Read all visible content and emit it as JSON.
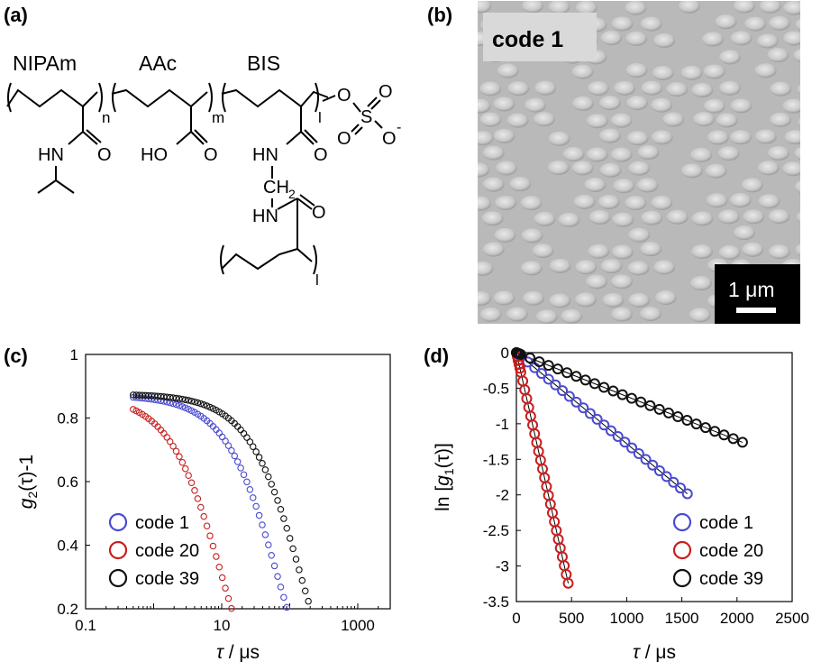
{
  "panels": {
    "a": "(a)",
    "b": "(b)",
    "c": "(c)",
    "d": "(d)"
  },
  "structure": {
    "monomers": [
      "NIPAm",
      "AAc",
      "BIS"
    ],
    "subscripts": [
      "n",
      "m",
      "l",
      "l"
    ],
    "groups": {
      "hn1": "HN",
      "o1": "O",
      "ho": "HO",
      "o2": "O",
      "hn2": "HN",
      "o3": "O",
      "ch": "CH",
      "ch_sub": "2",
      "hn3": "HN",
      "o4": "O",
      "sulfate_o1": "O",
      "sulfate_s": "S",
      "sulfate_o2": "O",
      "sulfate_o3": "O",
      "sulfate_o4": "O",
      "sulfate_minus": "-"
    }
  },
  "sem": {
    "label": "code 1",
    "scalebar": "1 μm",
    "colors": {
      "background": "#b9b9b9",
      "label_box": "#d9d9d9",
      "scalebar_box": "#000000"
    }
  },
  "chart_data": [
    {
      "type": "scatter",
      "panel": "c",
      "xlabel_var": "τ",
      "xlabel_unit": " / μs",
      "ylabel_var": "g",
      "ylabel_sub": "2",
      "ylabel_rest": "(τ)-1",
      "xscale": "log",
      "xlim": [
        0.1,
        3000
      ],
      "ylim": [
        0.2,
        1
      ],
      "xticks": [
        0.1,
        10,
        1000
      ],
      "xtick_labels": [
        "0.1",
        "10",
        "1000"
      ],
      "yticks": [
        0.2,
        0.4,
        0.6,
        0.8,
        1
      ],
      "ytick_labels": [
        "0.2",
        "0.4",
        "0.6",
        "0.8",
        "1"
      ],
      "series": [
        {
          "name": "code 1",
          "color": "#4a4ad0",
          "tau_c": 125,
          "beta": 1.0,
          "amp": 0.872
        },
        {
          "name": "code 20",
          "color": "#c81e1e",
          "tau_c": 19,
          "beta": 1.0,
          "amp": 0.872
        },
        {
          "name": "code 39",
          "color": "#111111",
          "tau_c": 275,
          "beta": 1.0,
          "amp": 0.876
        }
      ],
      "x_range": [
        0.5,
        1100
      ]
    },
    {
      "type": "scatter",
      "panel": "d",
      "xlabel_var": "τ",
      "xlabel_unit": " / μs",
      "ylabel": "ln [g1(τ)]",
      "ylabel_pre": "ln [",
      "ylabel_var": "g",
      "ylabel_sub": "1",
      "ylabel_rest": "(τ)]",
      "xlim": [
        0,
        2500
      ],
      "ylim": [
        -3.5,
        0
      ],
      "xticks": [
        0,
        500,
        1000,
        1500,
        2000,
        2500
      ],
      "xtick_labels": [
        "0",
        "500",
        "1000",
        "1500",
        "2000",
        "2500"
      ],
      "yticks": [
        -3.5,
        -3,
        -2.5,
        -2,
        -1.5,
        -1,
        -0.5,
        0
      ],
      "ytick_labels": [
        "-3.5",
        "-3",
        "-2.5",
        "-2",
        "-1.5",
        "-1",
        "-0.5",
        "0"
      ],
      "series": [
        {
          "name": "code 1",
          "color": "#4a4ad0",
          "slope": -0.00128,
          "x_max": 1550
        },
        {
          "name": "code 20",
          "color": "#c81e1e",
          "slope": -0.0069,
          "x_max": 470
        },
        {
          "name": "code 39",
          "color": "#111111",
          "slope": -0.000615,
          "x_max": 2050
        }
      ]
    }
  ]
}
